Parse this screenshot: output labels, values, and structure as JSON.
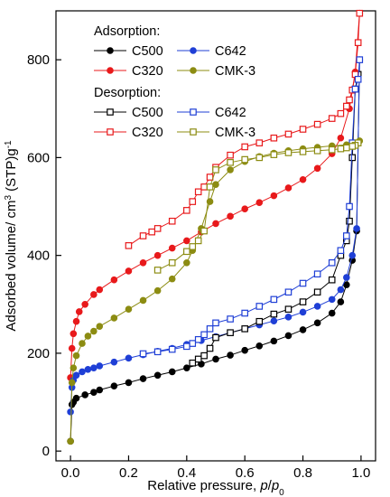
{
  "chart_data": {
    "type": "line",
    "xlabel": "Relative pressure, p/p0",
    "xlabel_parts": {
      "main": "Relative pressure, ",
      "p": "p",
      "slash": "/",
      "p0": "p",
      "sub": "0"
    },
    "ylabel": "Adsorbed volume/ cm³ (STP)g⁻¹",
    "ylabel_parts": {
      "main": "Adsorbed volume/ cm",
      "sup3": "3",
      "mid": " (STP)g",
      "supm1": "-1"
    },
    "xlim": [
      -0.05,
      1.05
    ],
    "ylim": [
      -20,
      900
    ],
    "xticks": [
      0.0,
      0.2,
      0.4,
      0.6,
      0.8,
      1.0
    ],
    "yticks": [
      0,
      200,
      400,
      600,
      800
    ],
    "xtick_labels": [
      "0.0",
      "0.2",
      "0.4",
      "0.6",
      "0.8",
      "1.0"
    ],
    "ytick_labels": [
      "0",
      "200",
      "400",
      "600",
      "800"
    ],
    "legend": {
      "position": "top-left",
      "adsorption_heading": "Adsorption:",
      "desorption_heading": "Desorption:"
    },
    "series": [
      {
        "name": "C500",
        "group": "adsorption",
        "color": "#000000",
        "marker": "filled-circle",
        "x": [
          0.0,
          0.005,
          0.01,
          0.02,
          0.05,
          0.08,
          0.1,
          0.15,
          0.2,
          0.25,
          0.3,
          0.35,
          0.4,
          0.45,
          0.5,
          0.55,
          0.6,
          0.65,
          0.7,
          0.75,
          0.8,
          0.85,
          0.9,
          0.93,
          0.95,
          0.97,
          0.985,
          0.995
        ],
        "y": [
          20,
          95,
          100,
          108,
          115,
          120,
          125,
          133,
          140,
          148,
          155,
          162,
          170,
          178,
          188,
          196,
          206,
          215,
          225,
          236,
          248,
          262,
          282,
          305,
          340,
          390,
          450,
          800
        ]
      },
      {
        "name": "C320",
        "group": "adsorption",
        "color": "#e8191b",
        "marker": "filled-circle",
        "x": [
          0.0,
          0.005,
          0.01,
          0.02,
          0.03,
          0.05,
          0.08,
          0.1,
          0.15,
          0.2,
          0.25,
          0.3,
          0.35,
          0.4,
          0.45,
          0.5,
          0.55,
          0.6,
          0.65,
          0.7,
          0.75,
          0.8,
          0.85,
          0.9,
          0.93,
          0.96,
          0.98,
          0.995
        ],
        "y": [
          150,
          210,
          240,
          265,
          285,
          300,
          320,
          330,
          350,
          368,
          385,
          400,
          415,
          430,
          448,
          465,
          480,
          495,
          508,
          522,
          538,
          555,
          578,
          608,
          640,
          700,
          775,
          895
        ]
      },
      {
        "name": "C642",
        "group": "adsorption",
        "color": "#1f3fd6",
        "marker": "filled-circle",
        "x": [
          0.0,
          0.005,
          0.01,
          0.02,
          0.04,
          0.06,
          0.08,
          0.1,
          0.15,
          0.2,
          0.25,
          0.3,
          0.35,
          0.4,
          0.45,
          0.5,
          0.55,
          0.6,
          0.65,
          0.7,
          0.75,
          0.8,
          0.85,
          0.9,
          0.93,
          0.95,
          0.97,
          0.985,
          0.995
        ],
        "y": [
          80,
          130,
          145,
          155,
          162,
          167,
          170,
          174,
          182,
          190,
          197,
          204,
          210,
          218,
          226,
          234,
          242,
          250,
          258,
          266,
          274,
          284,
          296,
          310,
          330,
          355,
          400,
          455,
          800
        ]
      },
      {
        "name": "CMK-3",
        "group": "adsorption",
        "color": "#8c8c12",
        "marker": "filled-circle",
        "x": [
          0.0,
          0.005,
          0.01,
          0.02,
          0.04,
          0.06,
          0.08,
          0.1,
          0.15,
          0.2,
          0.25,
          0.3,
          0.35,
          0.4,
          0.42,
          0.45,
          0.48,
          0.5,
          0.55,
          0.6,
          0.65,
          0.7,
          0.75,
          0.8,
          0.85,
          0.9,
          0.95,
          0.98,
          0.995
        ],
        "y": [
          20,
          140,
          170,
          195,
          220,
          235,
          245,
          255,
          272,
          290,
          308,
          328,
          352,
          385,
          410,
          455,
          510,
          545,
          575,
          592,
          602,
          609,
          614,
          618,
          621,
          624,
          626,
          628,
          634
        ]
      },
      {
        "name": "C500",
        "group": "desorption",
        "color": "#000000",
        "marker": "open-square",
        "x": [
          0.99,
          0.98,
          0.97,
          0.96,
          0.95,
          0.93,
          0.9,
          0.85,
          0.8,
          0.75,
          0.7,
          0.65,
          0.6,
          0.55,
          0.5,
          0.48,
          0.46,
          0.44,
          0.42
        ],
        "y": [
          770,
          740,
          600,
          470,
          430,
          400,
          350,
          325,
          305,
          290,
          280,
          265,
          250,
          242,
          232,
          210,
          195,
          188,
          180
        ]
      },
      {
        "name": "C320",
        "group": "desorption",
        "color": "#e8191b",
        "marker": "open-square",
        "x": [
          0.995,
          0.99,
          0.98,
          0.97,
          0.96,
          0.95,
          0.93,
          0.9,
          0.85,
          0.8,
          0.75,
          0.7,
          0.65,
          0.6,
          0.55,
          0.5,
          0.48,
          0.46,
          0.44,
          0.42,
          0.4,
          0.35,
          0.3,
          0.28,
          0.25,
          0.2
        ],
        "y": [
          895,
          835,
          770,
          738,
          718,
          705,
          690,
          680,
          668,
          658,
          648,
          640,
          630,
          622,
          605,
          580,
          560,
          540,
          530,
          510,
          492,
          470,
          455,
          448,
          440,
          420
        ]
      },
      {
        "name": "C642",
        "group": "desorption",
        "color": "#1f3fd6",
        "marker": "open-square",
        "x": [
          0.995,
          0.99,
          0.98,
          0.97,
          0.96,
          0.95,
          0.93,
          0.9,
          0.85,
          0.8,
          0.75,
          0.7,
          0.65,
          0.6,
          0.55,
          0.5,
          0.48,
          0.46,
          0.44,
          0.42,
          0.4,
          0.35,
          0.3,
          0.25
        ],
        "y": [
          800,
          760,
          740,
          630,
          500,
          440,
          410,
          385,
          362,
          343,
          325,
          310,
          296,
          282,
          270,
          262,
          250,
          238,
          228,
          220,
          214,
          208,
          203,
          199
        ]
      },
      {
        "name": "CMK-3",
        "group": "desorption",
        "color": "#8c8c12",
        "marker": "open-square",
        "x": [
          0.99,
          0.98,
          0.97,
          0.95,
          0.93,
          0.9,
          0.85,
          0.8,
          0.75,
          0.7,
          0.65,
          0.6,
          0.55,
          0.5,
          0.48,
          0.46,
          0.44,
          0.42,
          0.4,
          0.35,
          0.3
        ],
        "y": [
          630,
          625,
          623,
          620,
          618,
          616,
          614,
          612,
          610,
          606,
          600,
          596,
          590,
          575,
          540,
          450,
          430,
          418,
          408,
          385,
          370
        ]
      }
    ]
  }
}
